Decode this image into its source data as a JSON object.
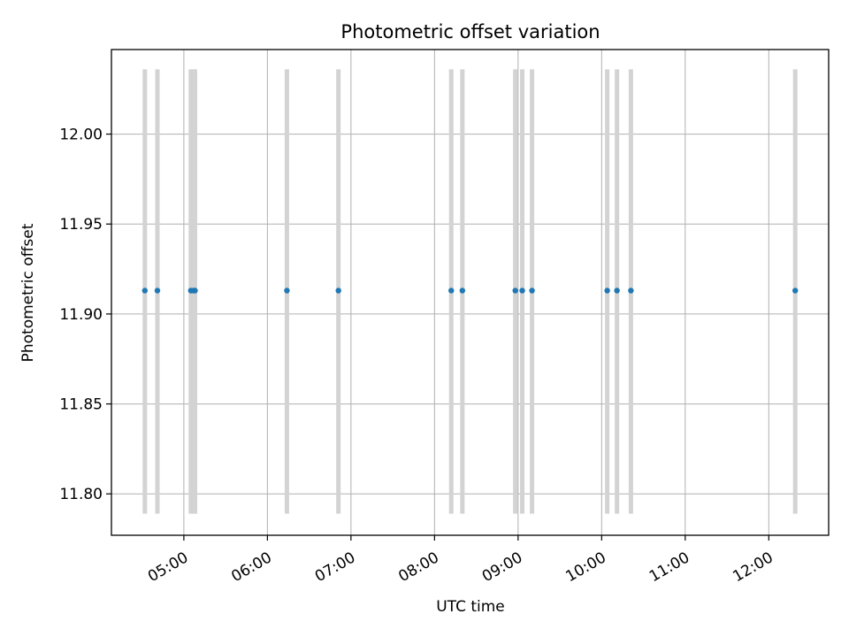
{
  "chart_data": {
    "type": "scatter",
    "title": "Photometric offset variation",
    "xlabel": "UTC time",
    "ylabel": "Photometric offset",
    "x_axis_type": "time",
    "xlim": [
      "04:08",
      "12:43"
    ],
    "ylim": [
      11.777,
      12.047
    ],
    "x_ticks": [
      "05:00",
      "06:00",
      "07:00",
      "08:00",
      "09:00",
      "10:00",
      "11:00",
      "12:00"
    ],
    "y_ticks": [
      11.8,
      11.85,
      11.9,
      11.95,
      12.0
    ],
    "y_tick_labels": [
      "11.80",
      "11.85",
      "11.90",
      "11.95",
      "12.00"
    ],
    "grid": true,
    "error_bar_range": [
      11.789,
      12.036
    ],
    "colors": {
      "points": "#1f77b4",
      "error_bars": "#d3d3d3",
      "grid": "#b0b0b0"
    },
    "points": [
      {
        "x": "04:32",
        "y": 11.913
      },
      {
        "x": "04:41",
        "y": 11.913
      },
      {
        "x": "05:05",
        "y": 11.913
      },
      {
        "x": "05:07",
        "y": 11.913
      },
      {
        "x": "05:08",
        "y": 11.913
      },
      {
        "x": "06:14",
        "y": 11.913
      },
      {
        "x": "06:51",
        "y": 11.913
      },
      {
        "x": "08:12",
        "y": 11.913
      },
      {
        "x": "08:20",
        "y": 11.913
      },
      {
        "x": "08:58",
        "y": 11.913
      },
      {
        "x": "09:03",
        "y": 11.913
      },
      {
        "x": "09:10",
        "y": 11.913
      },
      {
        "x": "10:04",
        "y": 11.913
      },
      {
        "x": "10:11",
        "y": 11.913
      },
      {
        "x": "10:21",
        "y": 11.913
      },
      {
        "x": "12:19",
        "y": 11.913
      }
    ]
  }
}
